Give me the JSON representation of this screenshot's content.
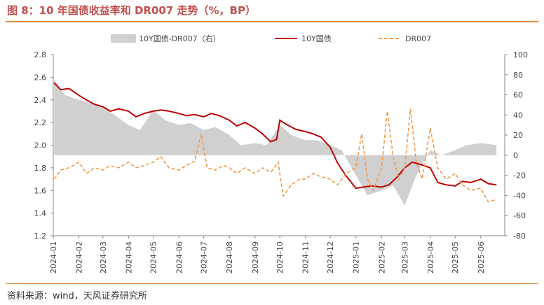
{
  "figure": {
    "title": "图 8：10 年国债收益率和 DR007 走势（%，BP）",
    "source": "资料来源：wind，天风证券研究所"
  },
  "chart_data": {
    "type": "line",
    "left_axis": {
      "ylim": [
        1.2,
        2.8
      ],
      "ticks": [
        "1.2",
        "1.4",
        "1.6",
        "1.8",
        "2.0",
        "2.2",
        "2.4",
        "2.6",
        "2.8"
      ]
    },
    "right_axis": {
      "ylim": [
        -80,
        100
      ],
      "ticks": [
        "-80",
        "-60",
        "-40",
        "-20",
        "0",
        "20",
        "40",
        "60",
        "80",
        "100"
      ]
    },
    "x_ticks": [
      "2024-01",
      "2024-02",
      "2024-03",
      "2024-04",
      "2024-05",
      "2024-06",
      "2024-07",
      "2024-08",
      "2024-09",
      "2024-10",
      "2024-11",
      "2024-12",
      "2025-01",
      "2025-02",
      "2025-03",
      "2025-04",
      "2025-05",
      "2025-06"
    ],
    "colors": {
      "spread": "#d0d0d0",
      "yield": "#c00000",
      "dr007": "#ee9a4d"
    },
    "series": [
      {
        "name": "10Y国债-DR007（右）",
        "axis": "right",
        "style": "area",
        "x": [
          "2024-01-02",
          "2024-01-15",
          "2024-02-01",
          "2024-02-15",
          "2024-03-01",
          "2024-03-15",
          "2024-04-01",
          "2024-04-15",
          "2024-05-01",
          "2024-05-15",
          "2024-06-01",
          "2024-06-15",
          "2024-07-01",
          "2024-07-15",
          "2024-08-01",
          "2024-08-15",
          "2024-09-01",
          "2024-09-15",
          "2024-10-01",
          "2024-10-15",
          "2024-11-01",
          "2024-11-15",
          "2024-12-01",
          "2024-12-15",
          "2025-01-01",
          "2025-01-15",
          "2025-02-01",
          "2025-02-15",
          "2025-03-01",
          "2025-03-15",
          "2025-04-01",
          "2025-04-15",
          "2025-05-01",
          "2025-05-15",
          "2025-06-01",
          "2025-06-20"
        ],
        "values": [
          75,
          60,
          55,
          52,
          48,
          40,
          30,
          25,
          45,
          35,
          30,
          32,
          25,
          28,
          20,
          10,
          12,
          10,
          30,
          20,
          15,
          15,
          10,
          5,
          -20,
          -40,
          -35,
          -30,
          -50,
          -20,
          5,
          0,
          5,
          10,
          12,
          10
        ]
      },
      {
        "name": "10Y国债",
        "axis": "left",
        "style": "line",
        "x": [
          "2024-01-02",
          "2024-01-10",
          "2024-01-20",
          "2024-02-01",
          "2024-02-10",
          "2024-02-20",
          "2024-03-01",
          "2024-03-10",
          "2024-03-20",
          "2024-04-01",
          "2024-04-10",
          "2024-04-20",
          "2024-05-01",
          "2024-05-10",
          "2024-05-20",
          "2024-06-01",
          "2024-06-10",
          "2024-06-20",
          "2024-07-01",
          "2024-07-10",
          "2024-07-20",
          "2024-08-01",
          "2024-08-10",
          "2024-08-20",
          "2024-09-01",
          "2024-09-10",
          "2024-09-20",
          "2024-09-27",
          "2024-10-01",
          "2024-10-10",
          "2024-10-20",
          "2024-11-01",
          "2024-11-10",
          "2024-11-20",
          "2024-12-01",
          "2024-12-10",
          "2024-12-20",
          "2025-01-01",
          "2025-01-10",
          "2025-01-20",
          "2025-02-01",
          "2025-02-10",
          "2025-02-20",
          "2025-03-01",
          "2025-03-10",
          "2025-03-20",
          "2025-04-01",
          "2025-04-10",
          "2025-04-20",
          "2025-05-01",
          "2025-05-10",
          "2025-05-20",
          "2025-06-01",
          "2025-06-10",
          "2025-06-20"
        ],
        "values": [
          2.55,
          2.49,
          2.5,
          2.44,
          2.4,
          2.36,
          2.34,
          2.3,
          2.32,
          2.3,
          2.25,
          2.28,
          2.3,
          2.31,
          2.3,
          2.28,
          2.26,
          2.27,
          2.25,
          2.28,
          2.26,
          2.22,
          2.17,
          2.2,
          2.15,
          2.1,
          2.03,
          2.05,
          2.22,
          2.18,
          2.14,
          2.12,
          2.1,
          2.07,
          1.98,
          1.84,
          1.73,
          1.62,
          1.63,
          1.64,
          1.63,
          1.65,
          1.72,
          1.8,
          1.85,
          1.83,
          1.8,
          1.67,
          1.65,
          1.64,
          1.68,
          1.67,
          1.7,
          1.66,
          1.65
        ]
      },
      {
        "name": "DR007",
        "axis": "left",
        "style": "dashed",
        "x": [
          "2024-01-02",
          "2024-01-10",
          "2024-01-20",
          "2024-02-01",
          "2024-02-10",
          "2024-02-20",
          "2024-03-01",
          "2024-03-10",
          "2024-03-20",
          "2024-04-01",
          "2024-04-10",
          "2024-04-20",
          "2024-05-01",
          "2024-05-10",
          "2024-05-20",
          "2024-06-01",
          "2024-06-10",
          "2024-06-20",
          "2024-06-28",
          "2024-07-05",
          "2024-07-15",
          "2024-07-25",
          "2024-08-01",
          "2024-08-10",
          "2024-08-20",
          "2024-09-01",
          "2024-09-10",
          "2024-09-20",
          "2024-09-29",
          "2024-10-05",
          "2024-10-15",
          "2024-10-25",
          "2024-11-01",
          "2024-11-10",
          "2024-11-20",
          "2024-12-01",
          "2024-12-10",
          "2024-12-20",
          "2025-01-01",
          "2025-01-08",
          "2025-01-15",
          "2025-01-22",
          "2025-02-01",
          "2025-02-08",
          "2025-02-15",
          "2025-02-22",
          "2025-03-01",
          "2025-03-08",
          "2025-03-15",
          "2025-03-22",
          "2025-04-01",
          "2025-04-10",
          "2025-04-20",
          "2025-05-01",
          "2025-05-10",
          "2025-05-20",
          "2025-06-01",
          "2025-06-10",
          "2025-06-20"
        ],
        "values": [
          1.7,
          1.78,
          1.8,
          1.85,
          1.75,
          1.8,
          1.78,
          1.82,
          1.8,
          1.85,
          1.8,
          1.82,
          1.85,
          1.9,
          1.8,
          1.78,
          1.82,
          1.86,
          2.1,
          1.8,
          1.78,
          1.82,
          1.8,
          1.75,
          1.8,
          1.75,
          1.8,
          1.76,
          1.85,
          1.55,
          1.65,
          1.7,
          1.7,
          1.75,
          1.72,
          1.7,
          1.65,
          1.75,
          1.8,
          2.1,
          1.7,
          1.6,
          1.8,
          2.3,
          1.9,
          1.7,
          1.8,
          2.32,
          1.85,
          1.7,
          2.15,
          1.8,
          1.7,
          1.75,
          1.65,
          1.6,
          1.62,
          1.5,
          1.52
        ]
      }
    ]
  }
}
